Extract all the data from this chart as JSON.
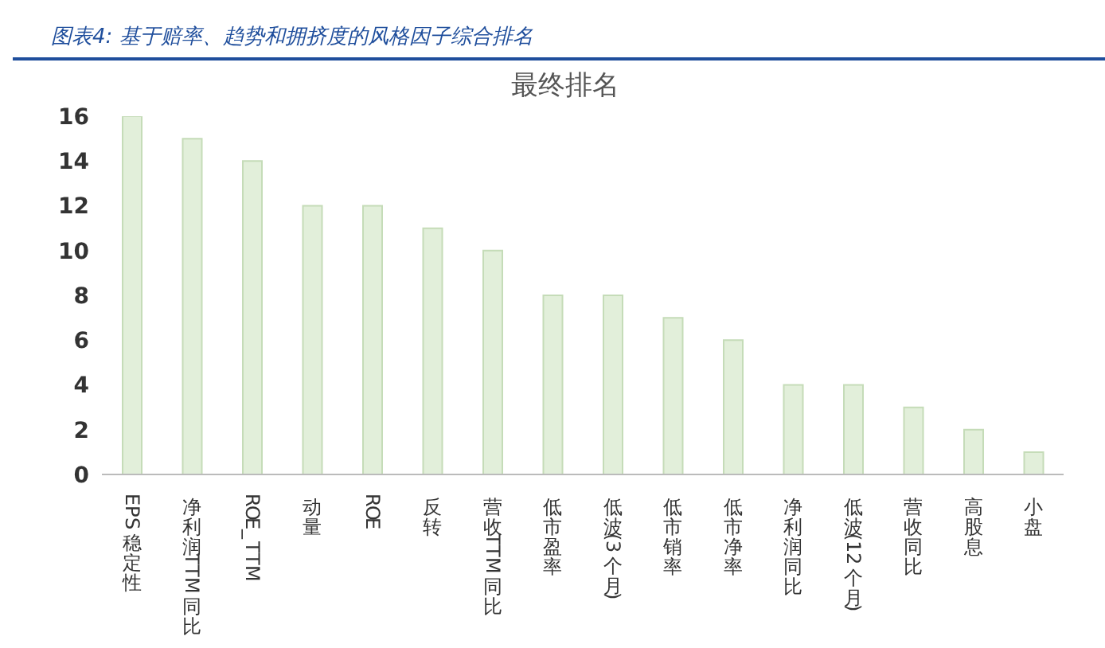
{
  "chart_data": {
    "type": "bar",
    "subtitle": "图表4: 基于赔率、趋势和拥挤度的风格因子综合排名",
    "title": "最终排名",
    "categories": [
      "EPS稳定性",
      "净利润TTM同比",
      "ROE_TTM",
      "动量",
      "ROE",
      "反转",
      "营收TTM同比",
      "低市盈率",
      "低波(3个月)",
      "低市销率",
      "低市净率",
      "净利润同比",
      "低波(12个月)",
      "营收同比",
      "高股息",
      "小盘"
    ],
    "values": [
      16,
      15,
      14,
      12,
      12,
      11,
      10,
      8,
      8,
      7,
      6,
      4,
      4,
      3,
      2,
      1
    ],
    "color": "#e2efda",
    "ylim": [
      0,
      16
    ],
    "yticks": [
      0,
      2,
      4,
      6,
      8,
      10,
      12,
      14,
      16
    ],
    "grid": false,
    "legend": false
  }
}
